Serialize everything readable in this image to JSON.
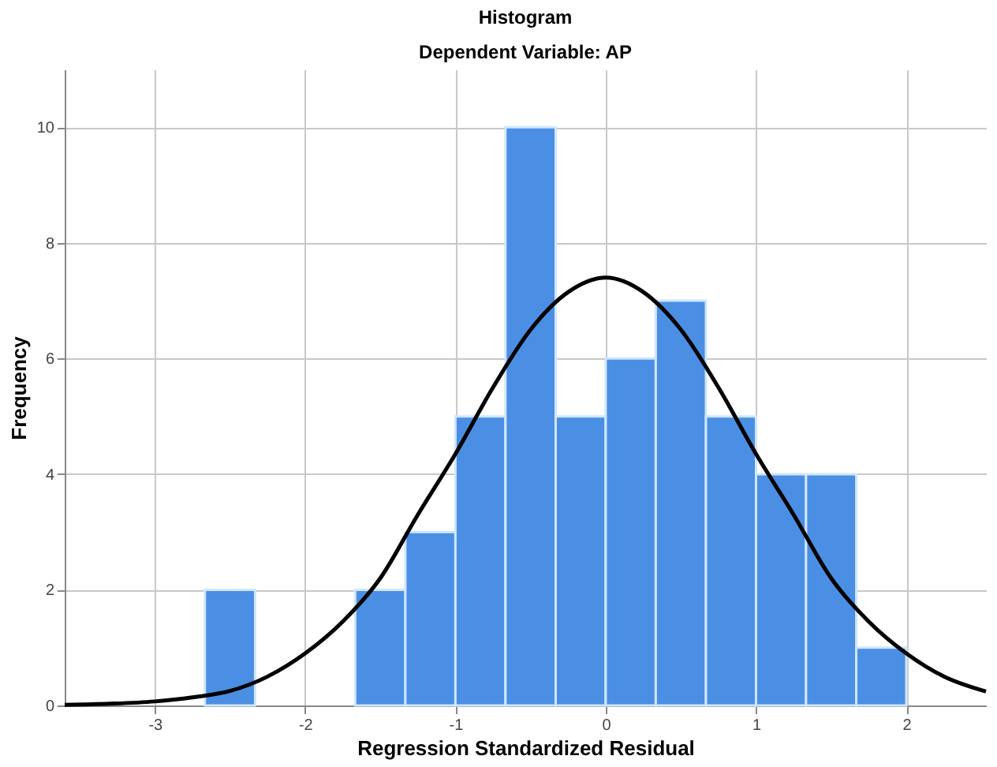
{
  "chart_data": {
    "type": "histogram",
    "title": "Histogram",
    "subtitle": "Dependent Variable: AP",
    "xlabel": "Regression Standardized Residual",
    "ylabel": "Frequency",
    "bins": [
      -2.667,
      -2.333,
      -2,
      -1.667,
      -1.333,
      -1,
      -0.667,
      -0.333,
      0,
      0.333,
      0.667,
      1,
      1.333,
      1.667,
      2
    ],
    "values": [
      2,
      0,
      0,
      2,
      3,
      5,
      10,
      5,
      6,
      7,
      5,
      4,
      4,
      1
    ],
    "color": "#4a8fe3",
    "series": [
      {
        "type": "line",
        "color": "#000000",
        "x": [
          -3.6,
          -3.3,
          -3,
          -2.75,
          -2.5,
          -2.25,
          -2,
          -1.75,
          -1.5,
          -1.25,
          -1,
          -0.75,
          -0.5,
          -0.25,
          0,
          0.25,
          0.5,
          0.75,
          1,
          1.25,
          1.5,
          1.75,
          2,
          2.25,
          2.53
        ],
        "values": [
          0.01,
          0.03,
          0.07,
          0.14,
          0.25,
          0.5,
          0.9,
          1.45,
          2.2,
          3.3,
          4.35,
          5.5,
          6.5,
          7.15,
          7.4,
          7.15,
          6.5,
          5.5,
          4.35,
          3.3,
          2.2,
          1.45,
          0.9,
          0.5,
          0.24
        ]
      }
    ],
    "xlim": [
      -3.6,
      2.53
    ],
    "xticks": [
      -3,
      -2,
      -1,
      0,
      1,
      2
    ],
    "ylim": [
      0,
      11
    ],
    "yticks": [
      0,
      2,
      4,
      6,
      8,
      10
    ],
    "grid": true
  }
}
